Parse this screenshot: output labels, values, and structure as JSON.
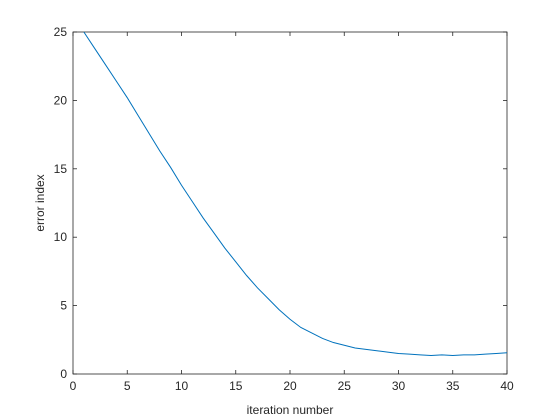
{
  "chart_data": {
    "type": "line",
    "xlabel": "iteration number",
    "ylabel": "error index",
    "x": [
      1,
      2,
      3,
      4,
      5,
      6,
      7,
      8,
      9,
      10,
      11,
      12,
      13,
      14,
      15,
      16,
      17,
      18,
      19,
      20,
      21,
      22,
      23,
      24,
      25,
      26,
      27,
      28,
      29,
      30,
      31,
      32,
      33,
      34,
      35,
      36,
      37,
      38,
      39,
      40
    ],
    "series": [
      {
        "color": "#0072bd",
        "values": [
          25,
          23.8,
          22.6,
          21.4,
          20.2,
          18.9,
          17.6,
          16.3,
          15.1,
          13.8,
          12.6,
          11.4,
          10.3,
          9.2,
          8.2,
          7.2,
          6.3,
          5.5,
          4.7,
          4.0,
          3.4,
          3.0,
          2.6,
          2.3,
          2.1,
          1.9,
          1.8,
          1.7,
          1.6,
          1.5,
          1.45,
          1.4,
          1.35,
          1.4,
          1.35,
          1.4,
          1.4,
          1.45,
          1.5,
          1.55
        ]
      }
    ],
    "xlim": [
      0,
      40
    ],
    "xticks": [
      0,
      5,
      10,
      15,
      20,
      25,
      30,
      35,
      40
    ],
    "ylim": [
      0,
      25
    ],
    "yticks": [
      0,
      5,
      10,
      15,
      20,
      25
    ]
  }
}
